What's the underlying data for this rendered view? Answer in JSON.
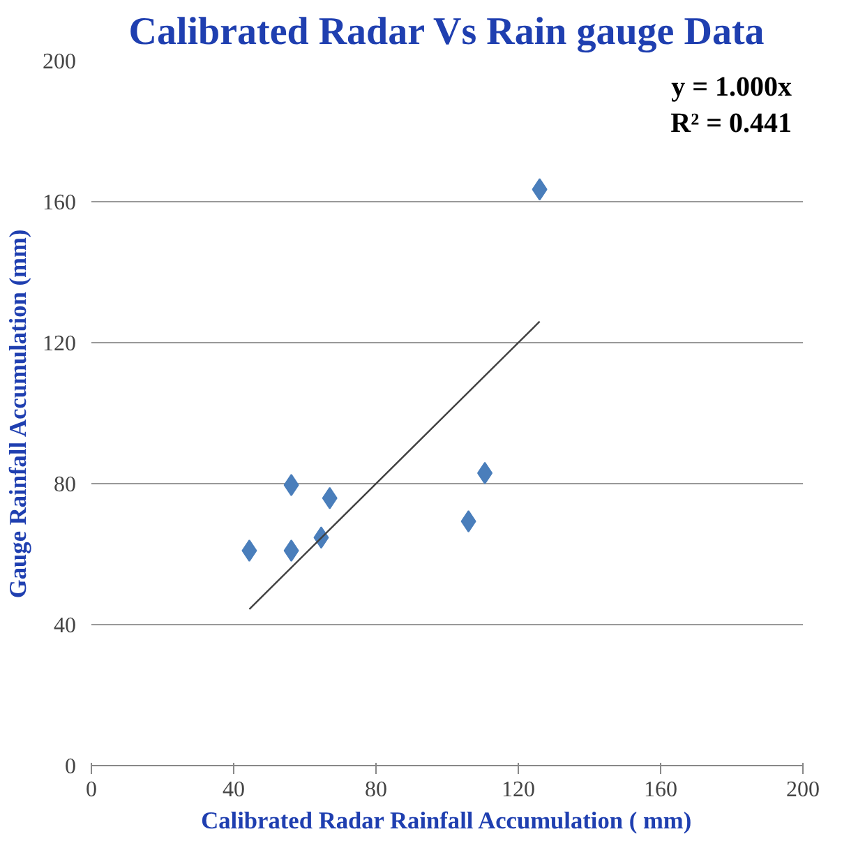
{
  "chart_data": {
    "type": "scatter",
    "title": "Calibrated Radar Vs Rain gauge Data",
    "xlabel": "Calibrated Radar Rainfall Accumulation ( mm)",
    "ylabel": "Gauge Rainfall Accumulation (mm)",
    "xlim": [
      0,
      200
    ],
    "ylim": [
      0,
      200
    ],
    "xticks": [
      0,
      40,
      80,
      120,
      160,
      200
    ],
    "yticks": [
      0,
      40,
      80,
      120,
      160,
      200
    ],
    "grid": "y",
    "annotations": [
      "y = 1.000x",
      "R² = 0.441"
    ],
    "series": [
      {
        "marker": "diamond",
        "color": "#4a7ebb",
        "x": [
          44.4,
          56.2,
          56.2,
          64.6,
          67,
          106,
          110.6,
          126
        ],
        "values": [
          61,
          79.6,
          61,
          64.7,
          75.9,
          69.3,
          83,
          163.5
        ]
      },
      {
        "type": "line",
        "marker": "none",
        "color": "#404040",
        "x": [
          44.4,
          126
        ],
        "values": [
          44.4,
          126
        ]
      }
    ]
  }
}
